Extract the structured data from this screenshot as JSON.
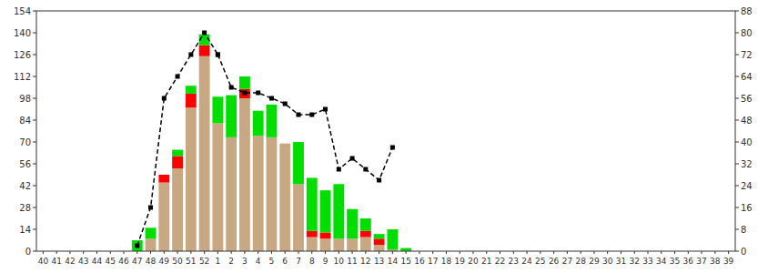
{
  "chart_data": {
    "type": "bar",
    "stacked": true,
    "grid": false,
    "categories": [
      "40",
      "41",
      "42",
      "43",
      "44",
      "45",
      "46",
      "47",
      "48",
      "49",
      "50",
      "51",
      "52",
      "1",
      "2",
      "3",
      "4",
      "5",
      "6",
      "7",
      "8",
      "9",
      "10",
      "11",
      "12",
      "13",
      "14",
      "15",
      "16",
      "17",
      "18",
      "19",
      "20",
      "21",
      "22",
      "23",
      "24",
      "25",
      "26",
      "27",
      "28",
      "29",
      "30",
      "31",
      "32",
      "33",
      "34",
      "35",
      "36",
      "37",
      "38",
      "39"
    ],
    "series": [
      {
        "color": "#C8A882",
        "values": [
          0,
          0,
          0,
          0,
          0,
          0,
          0,
          0,
          8,
          44,
          53,
          92,
          125,
          82,
          73,
          98,
          74,
          73,
          69,
          43,
          9,
          8,
          8,
          8,
          9,
          4,
          1,
          0,
          0,
          0,
          0,
          0,
          0,
          0,
          0,
          0,
          0,
          0,
          0,
          0,
          0,
          0,
          0,
          0,
          0,
          0,
          0,
          0,
          0,
          0,
          0,
          0
        ]
      },
      {
        "color": "#FF0000",
        "values": [
          0,
          0,
          0,
          0,
          0,
          0,
          0,
          0,
          0,
          5,
          8,
          9,
          7,
          0,
          0,
          6,
          0,
          0,
          0,
          0,
          4,
          4,
          0,
          0,
          4,
          4,
          0,
          0,
          0,
          0,
          0,
          0,
          0,
          0,
          0,
          0,
          0,
          0,
          0,
          0,
          0,
          0,
          0,
          0,
          0,
          0,
          0,
          0,
          0,
          0,
          0,
          0
        ]
      },
      {
        "color": "#00DD00",
        "values": [
          0,
          0,
          0,
          0,
          0,
          0,
          0,
          7,
          7,
          0,
          4,
          5,
          7,
          17,
          27,
          8,
          16,
          21,
          0,
          27,
          34,
          27,
          35,
          19,
          8,
          3,
          13,
          2,
          0,
          0,
          0,
          0,
          0,
          0,
          0,
          0,
          0,
          0,
          0,
          0,
          0,
          0,
          0,
          0,
          0,
          0,
          0,
          0,
          0,
          0,
          0,
          0
        ]
      },
      {
        "type": "line",
        "axis": "y2",
        "color": "#000000",
        "line_style": "dashed",
        "marker": "square",
        "values": [
          null,
          null,
          null,
          null,
          null,
          null,
          null,
          2,
          16,
          56,
          64,
          72,
          80,
          72,
          null,
          null,
          null,
          null,
          null,
          null,
          null,
          null,
          null,
          null,
          null,
          null,
          null,
          null,
          null,
          null,
          null,
          null,
          null,
          null,
          null,
          null,
          null,
          null,
          null,
          null,
          null,
          null,
          null,
          null,
          null,
          null,
          null,
          null,
          null,
          null,
          null,
          null
        ]
      },
      {
        "type": "line",
        "axis": "y2",
        "color": "#000000",
        "line_style": "dashed",
        "marker": "square",
        "values": [
          null,
          null,
          null,
          null,
          null,
          null,
          null,
          null,
          null,
          null,
          null,
          null,
          null,
          72,
          60,
          58,
          58,
          56,
          54,
          50,
          50,
          52,
          30,
          34,
          30,
          26,
          38,
          null,
          null,
          null,
          null,
          null,
          null,
          null,
          null,
          null,
          null,
          null,
          null,
          null,
          null,
          null,
          null,
          null,
          null,
          null,
          null,
          null,
          null,
          null,
          null,
          null
        ]
      }
    ],
    "ylim": [
      0,
      154
    ],
    "yticks": [
      0,
      14,
      28,
      42,
      56,
      70,
      84,
      98,
      112,
      126,
      140,
      154
    ],
    "y2lim": [
      0,
      88
    ],
    "y2ticks": [
      0,
      8,
      16,
      24,
      32,
      40,
      48,
      56,
      64,
      72,
      80,
      88
    ]
  }
}
